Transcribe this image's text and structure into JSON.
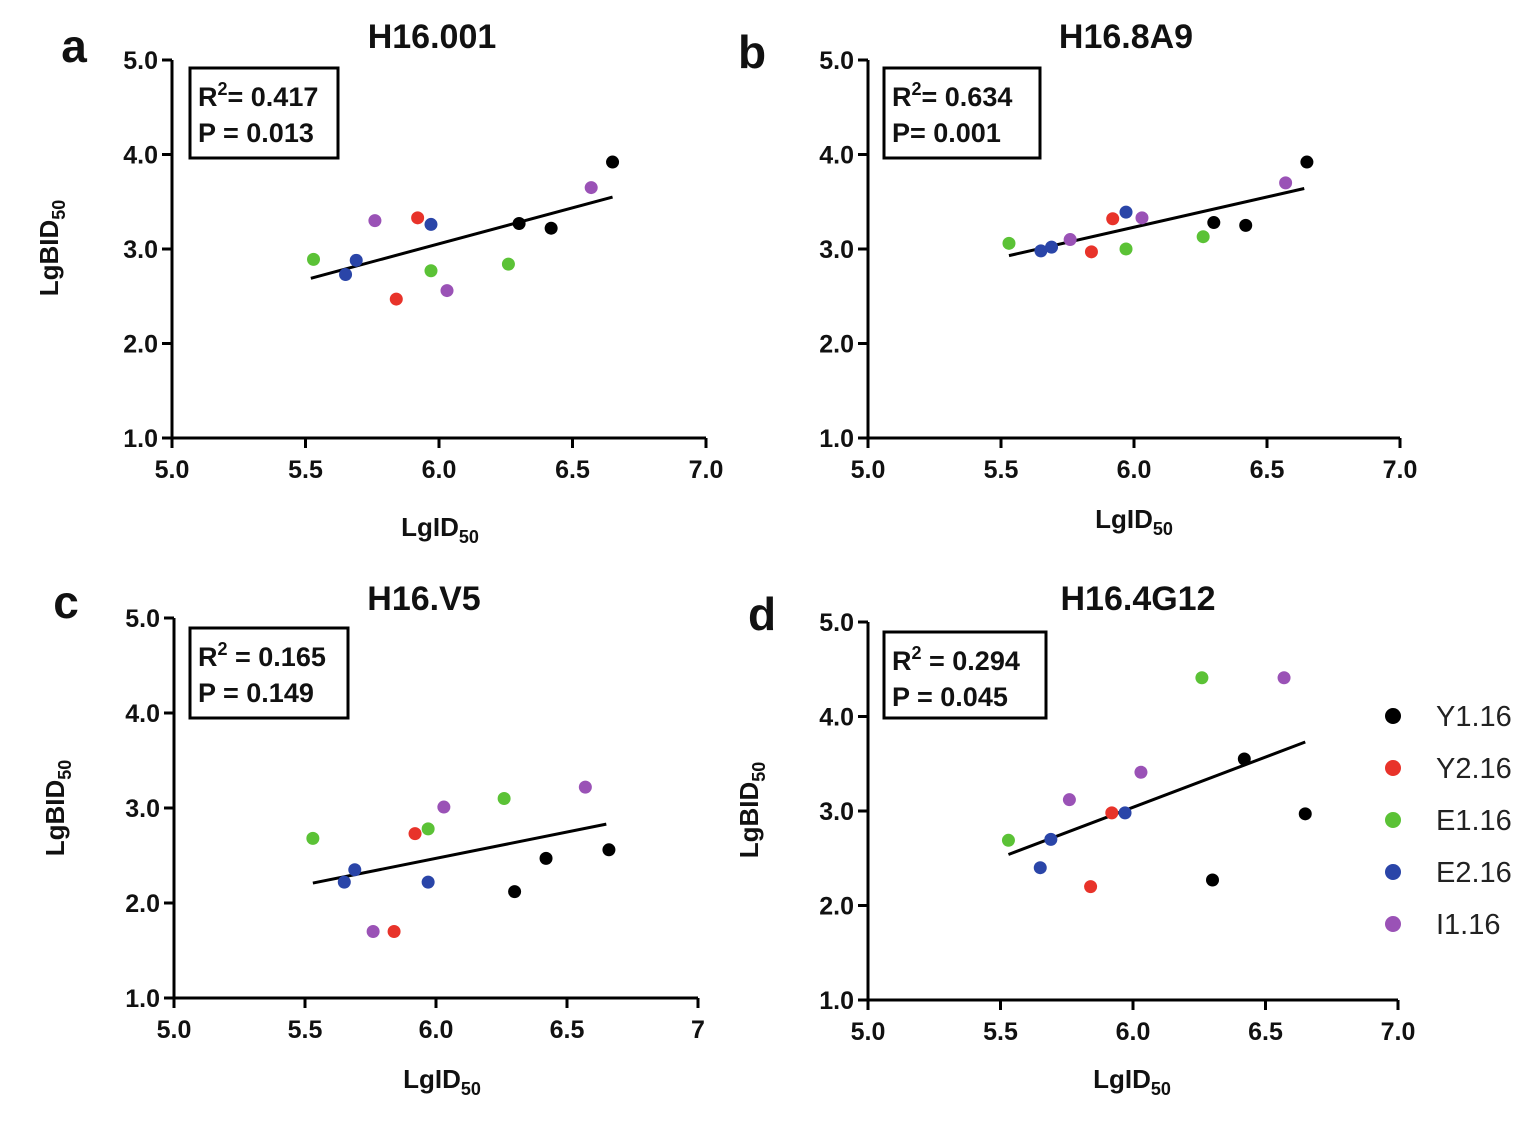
{
  "legend": [
    {
      "label": "Y1.16",
      "color": "#000000"
    },
    {
      "label": "Y2.16",
      "color": "#e8332a"
    },
    {
      "label": "E1.16",
      "color": "#5bc236"
    },
    {
      "label": "E2.16",
      "color": "#2a45a8"
    },
    {
      "label": "I1.16",
      "color": "#9a52b6"
    }
  ],
  "chart_data": [
    {
      "panel": "a",
      "type": "scatter",
      "title": "H16.001",
      "xlabel": "LgID",
      "xlabel_sub": "50",
      "ylabel": "LgBID",
      "ylabel_sub": "50",
      "xlim": [
        5.0,
        7.0
      ],
      "ylim": [
        1.0,
        5.0
      ],
      "xticks": [
        "5.0",
        "5.5",
        "6.0",
        "6.5",
        "7.0"
      ],
      "yticks": [
        "1.0",
        "2.0",
        "3.0",
        "4.0",
        "5.0"
      ],
      "stats": {
        "r2_prefix": "R",
        "r2_sup": "2",
        "r2_rest": "= 0.417",
        "p": "P = 0.013"
      },
      "fit": {
        "x": [
          5.52,
          6.65
        ],
        "y": [
          2.69,
          3.55
        ]
      },
      "series": [
        {
          "name": "Y1.16",
          "points": [
            [
              6.3,
              3.27
            ],
            [
              6.42,
              3.22
            ],
            [
              6.65,
              3.92
            ]
          ]
        },
        {
          "name": "Y2.16",
          "points": [
            [
              5.92,
              3.33
            ],
            [
              5.84,
              2.47
            ]
          ]
        },
        {
          "name": "E1.16",
          "points": [
            [
              5.53,
              2.89
            ],
            [
              5.97,
              2.77
            ],
            [
              6.26,
              2.84
            ]
          ]
        },
        {
          "name": "E2.16",
          "points": [
            [
              5.69,
              2.88
            ],
            [
              5.65,
              2.73
            ],
            [
              5.97,
              3.26
            ]
          ]
        },
        {
          "name": "I1.16",
          "points": [
            [
              5.76,
              3.3
            ],
            [
              6.03,
              2.56
            ],
            [
              6.57,
              3.65
            ]
          ]
        }
      ]
    },
    {
      "panel": "b",
      "type": "scatter",
      "title": "H16.8A9",
      "xlabel": "LgID",
      "xlabel_sub": "50",
      "ylabel": "",
      "ylabel_sub": "",
      "xlim": [
        5.0,
        7.0
      ],
      "ylim": [
        1.0,
        5.0
      ],
      "xticks": [
        "5.0",
        "5.5",
        "6.0",
        "6.5",
        "7.0"
      ],
      "yticks": [
        "1.0",
        "2.0",
        "3.0",
        "4.0",
        "5.0"
      ],
      "stats": {
        "r2_prefix": "R",
        "r2_sup": "2",
        "r2_rest": "= 0.634",
        "p": "P= 0.001"
      },
      "fit": {
        "x": [
          5.53,
          6.64
        ],
        "y": [
          2.93,
          3.64
        ]
      },
      "series": [
        {
          "name": "Y1.16",
          "points": [
            [
              6.3,
              3.28
            ],
            [
              6.42,
              3.25
            ],
            [
              6.65,
              3.92
            ]
          ]
        },
        {
          "name": "Y2.16",
          "points": [
            [
              5.92,
              3.32
            ],
            [
              5.84,
              2.97
            ]
          ]
        },
        {
          "name": "E1.16",
          "points": [
            [
              5.53,
              3.06
            ],
            [
              5.97,
              3.0
            ],
            [
              6.26,
              3.13
            ]
          ]
        },
        {
          "name": "E2.16",
          "points": [
            [
              5.65,
              2.98
            ],
            [
              5.69,
              3.02
            ],
            [
              5.97,
              3.39
            ]
          ]
        },
        {
          "name": "I1.16",
          "points": [
            [
              5.76,
              3.1
            ],
            [
              6.03,
              3.33
            ],
            [
              6.57,
              3.7
            ]
          ]
        }
      ]
    },
    {
      "panel": "c",
      "type": "scatter",
      "title": "H16.V5",
      "xlabel": "LgID",
      "xlabel_sub": "50",
      "ylabel": "LgBID",
      "ylabel_sub": "50",
      "xlim": [
        5.0,
        7.0
      ],
      "ylim": [
        1.0,
        5.0
      ],
      "xticks": [
        "5.0",
        "5.5",
        "6.0",
        "6.5",
        "7"
      ],
      "yticks": [
        "1.0",
        "2.0",
        "3.0",
        "4.0",
        "5.0"
      ],
      "stats": {
        "r2_prefix": "R",
        "r2_sup": "2",
        "r2_rest": " = 0.165",
        "p": "P = 0.149"
      },
      "fit": {
        "x": [
          5.53,
          6.65
        ],
        "y": [
          2.21,
          2.83
        ]
      },
      "series": [
        {
          "name": "Y1.16",
          "points": [
            [
              6.3,
              2.12
            ],
            [
              6.42,
              2.47
            ],
            [
              6.66,
              2.56
            ]
          ]
        },
        {
          "name": "Y2.16",
          "points": [
            [
              5.92,
              2.73
            ],
            [
              5.84,
              1.7
            ]
          ]
        },
        {
          "name": "E1.16",
          "points": [
            [
              5.53,
              2.68
            ],
            [
              5.97,
              2.78
            ],
            [
              6.26,
              3.1
            ]
          ]
        },
        {
          "name": "E2.16",
          "points": [
            [
              5.65,
              2.22
            ],
            [
              5.69,
              2.35
            ],
            [
              5.97,
              2.22
            ]
          ]
        },
        {
          "name": "I1.16",
          "points": [
            [
              5.76,
              1.7
            ],
            [
              6.03,
              3.01
            ],
            [
              6.57,
              3.22
            ]
          ]
        }
      ]
    },
    {
      "panel": "d",
      "type": "scatter",
      "title": "H16.4G12",
      "xlabel": "LgID",
      "xlabel_sub": "50",
      "ylabel": "LgBID",
      "ylabel_sub": "50",
      "xlim": [
        5.0,
        7.0
      ],
      "ylim": [
        1.0,
        5.0
      ],
      "xticks": [
        "5.0",
        "5.5",
        "6.0",
        "6.5",
        "7.0"
      ],
      "yticks": [
        "1.0",
        "2.0",
        "3.0",
        "4.0",
        "5.0"
      ],
      "stats": {
        "r2_prefix": "R",
        "r2_sup": "2",
        "r2_rest": " = 0.294",
        "p": "P = 0.045"
      },
      "fit": {
        "x": [
          5.53,
          6.65
        ],
        "y": [
          2.54,
          3.73
        ]
      },
      "series": [
        {
          "name": "Y1.16",
          "points": [
            [
              6.3,
              2.27
            ],
            [
              6.42,
              3.55
            ],
            [
              6.65,
              2.97
            ]
          ]
        },
        {
          "name": "Y2.16",
          "points": [
            [
              5.92,
              2.98
            ],
            [
              5.84,
              2.2
            ]
          ]
        },
        {
          "name": "E1.16",
          "points": [
            [
              5.53,
              2.69
            ],
            [
              6.26,
              4.41
            ]
          ]
        },
        {
          "name": "E2.16",
          "points": [
            [
              5.65,
              2.4
            ],
            [
              5.69,
              2.7
            ],
            [
              5.97,
              2.98
            ]
          ]
        },
        {
          "name": "I1.16",
          "points": [
            [
              5.76,
              3.12
            ],
            [
              6.03,
              3.41
            ],
            [
              6.57,
              4.41
            ]
          ]
        }
      ]
    }
  ]
}
